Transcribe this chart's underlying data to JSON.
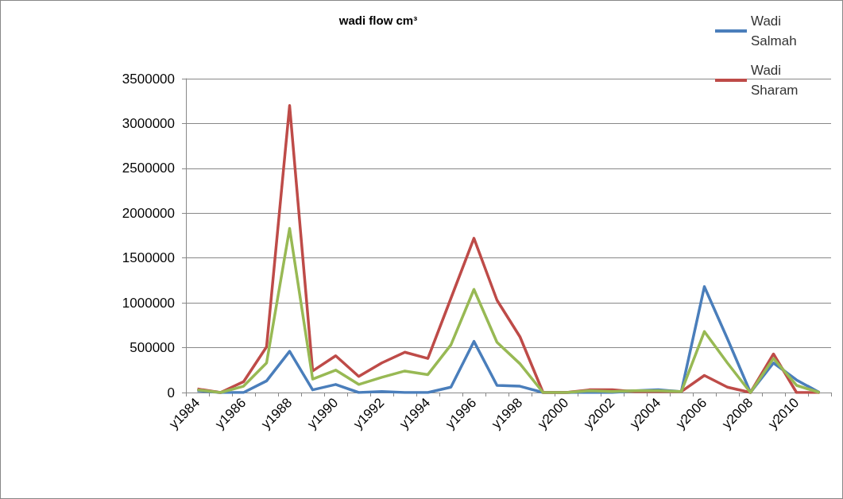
{
  "chart_data": {
    "type": "line",
    "title": "wadi flow cm³",
    "categories": [
      "y1984",
      null,
      "y1986",
      null,
      "y1988",
      null,
      "y1990",
      null,
      "y1992",
      null,
      "y1994",
      null,
      "y1996",
      null,
      "y1998",
      null,
      "y2000",
      null,
      "y2002",
      null,
      "y2004",
      null,
      "y2006",
      null,
      "y2008",
      null,
      "y2010",
      null
    ],
    "series": [
      {
        "name": "Wadi Salmah",
        "color": "#4a7ebb",
        "values": [
          20000,
          0,
          0,
          130000,
          460000,
          30000,
          90000,
          0,
          10000,
          0,
          0,
          60000,
          570000,
          80000,
          70000,
          0,
          0,
          0,
          0,
          20000,
          30000,
          10000,
          1180000,
          600000,
          0,
          330000,
          140000,
          0
        ]
      },
      {
        "name": "Wadi Sharam",
        "color": "#be4b48",
        "values": [
          40000,
          0,
          120000,
          510000,
          3200000,
          240000,
          410000,
          180000,
          330000,
          450000,
          380000,
          1050000,
          1720000,
          1030000,
          620000,
          0,
          0,
          30000,
          30000,
          10000,
          10000,
          10000,
          190000,
          60000,
          0,
          430000,
          0,
          0
        ]
      },
      {
        "color": "#98b954",
        "values": [
          30000,
          0,
          70000,
          330000,
          1830000,
          150000,
          250000,
          90000,
          170000,
          240000,
          200000,
          530000,
          1150000,
          560000,
          320000,
          0,
          0,
          20000,
          10000,
          20000,
          20000,
          10000,
          680000,
          330000,
          0,
          380000,
          80000,
          0
        ]
      }
    ],
    "ylim": [
      0,
      3500000
    ],
    "yticks": [
      0,
      500000,
      1000000,
      1500000,
      2000000,
      2500000,
      3000000,
      3500000
    ],
    "grid": "y",
    "legend": "top right",
    "marker": "none",
    "line_style": "solid"
  }
}
